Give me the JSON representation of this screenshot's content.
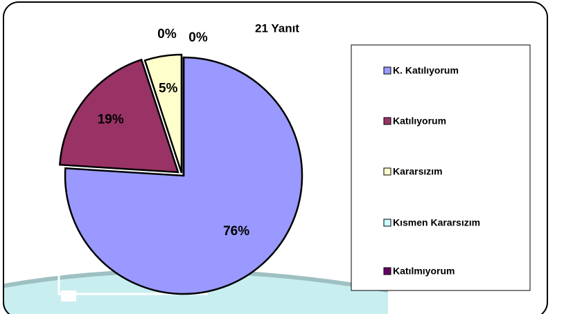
{
  "chart_data": {
    "type": "pie",
    "title": "21 Yanıt",
    "categories": [
      "K. Katılıyorum",
      "Katılıyorum",
      "Kararsızım",
      "Kısmen Kararsızım",
      "Katılmıyorum"
    ],
    "values": [
      76,
      19,
      5,
      0,
      0
    ],
    "value_labels": [
      "76%",
      "19%",
      "5%",
      "0%",
      "0%"
    ],
    "colors": [
      "#9999ff",
      "#993366",
      "#ffffcc",
      "#ccffff",
      "#660066"
    ],
    "legend": "right"
  }
}
